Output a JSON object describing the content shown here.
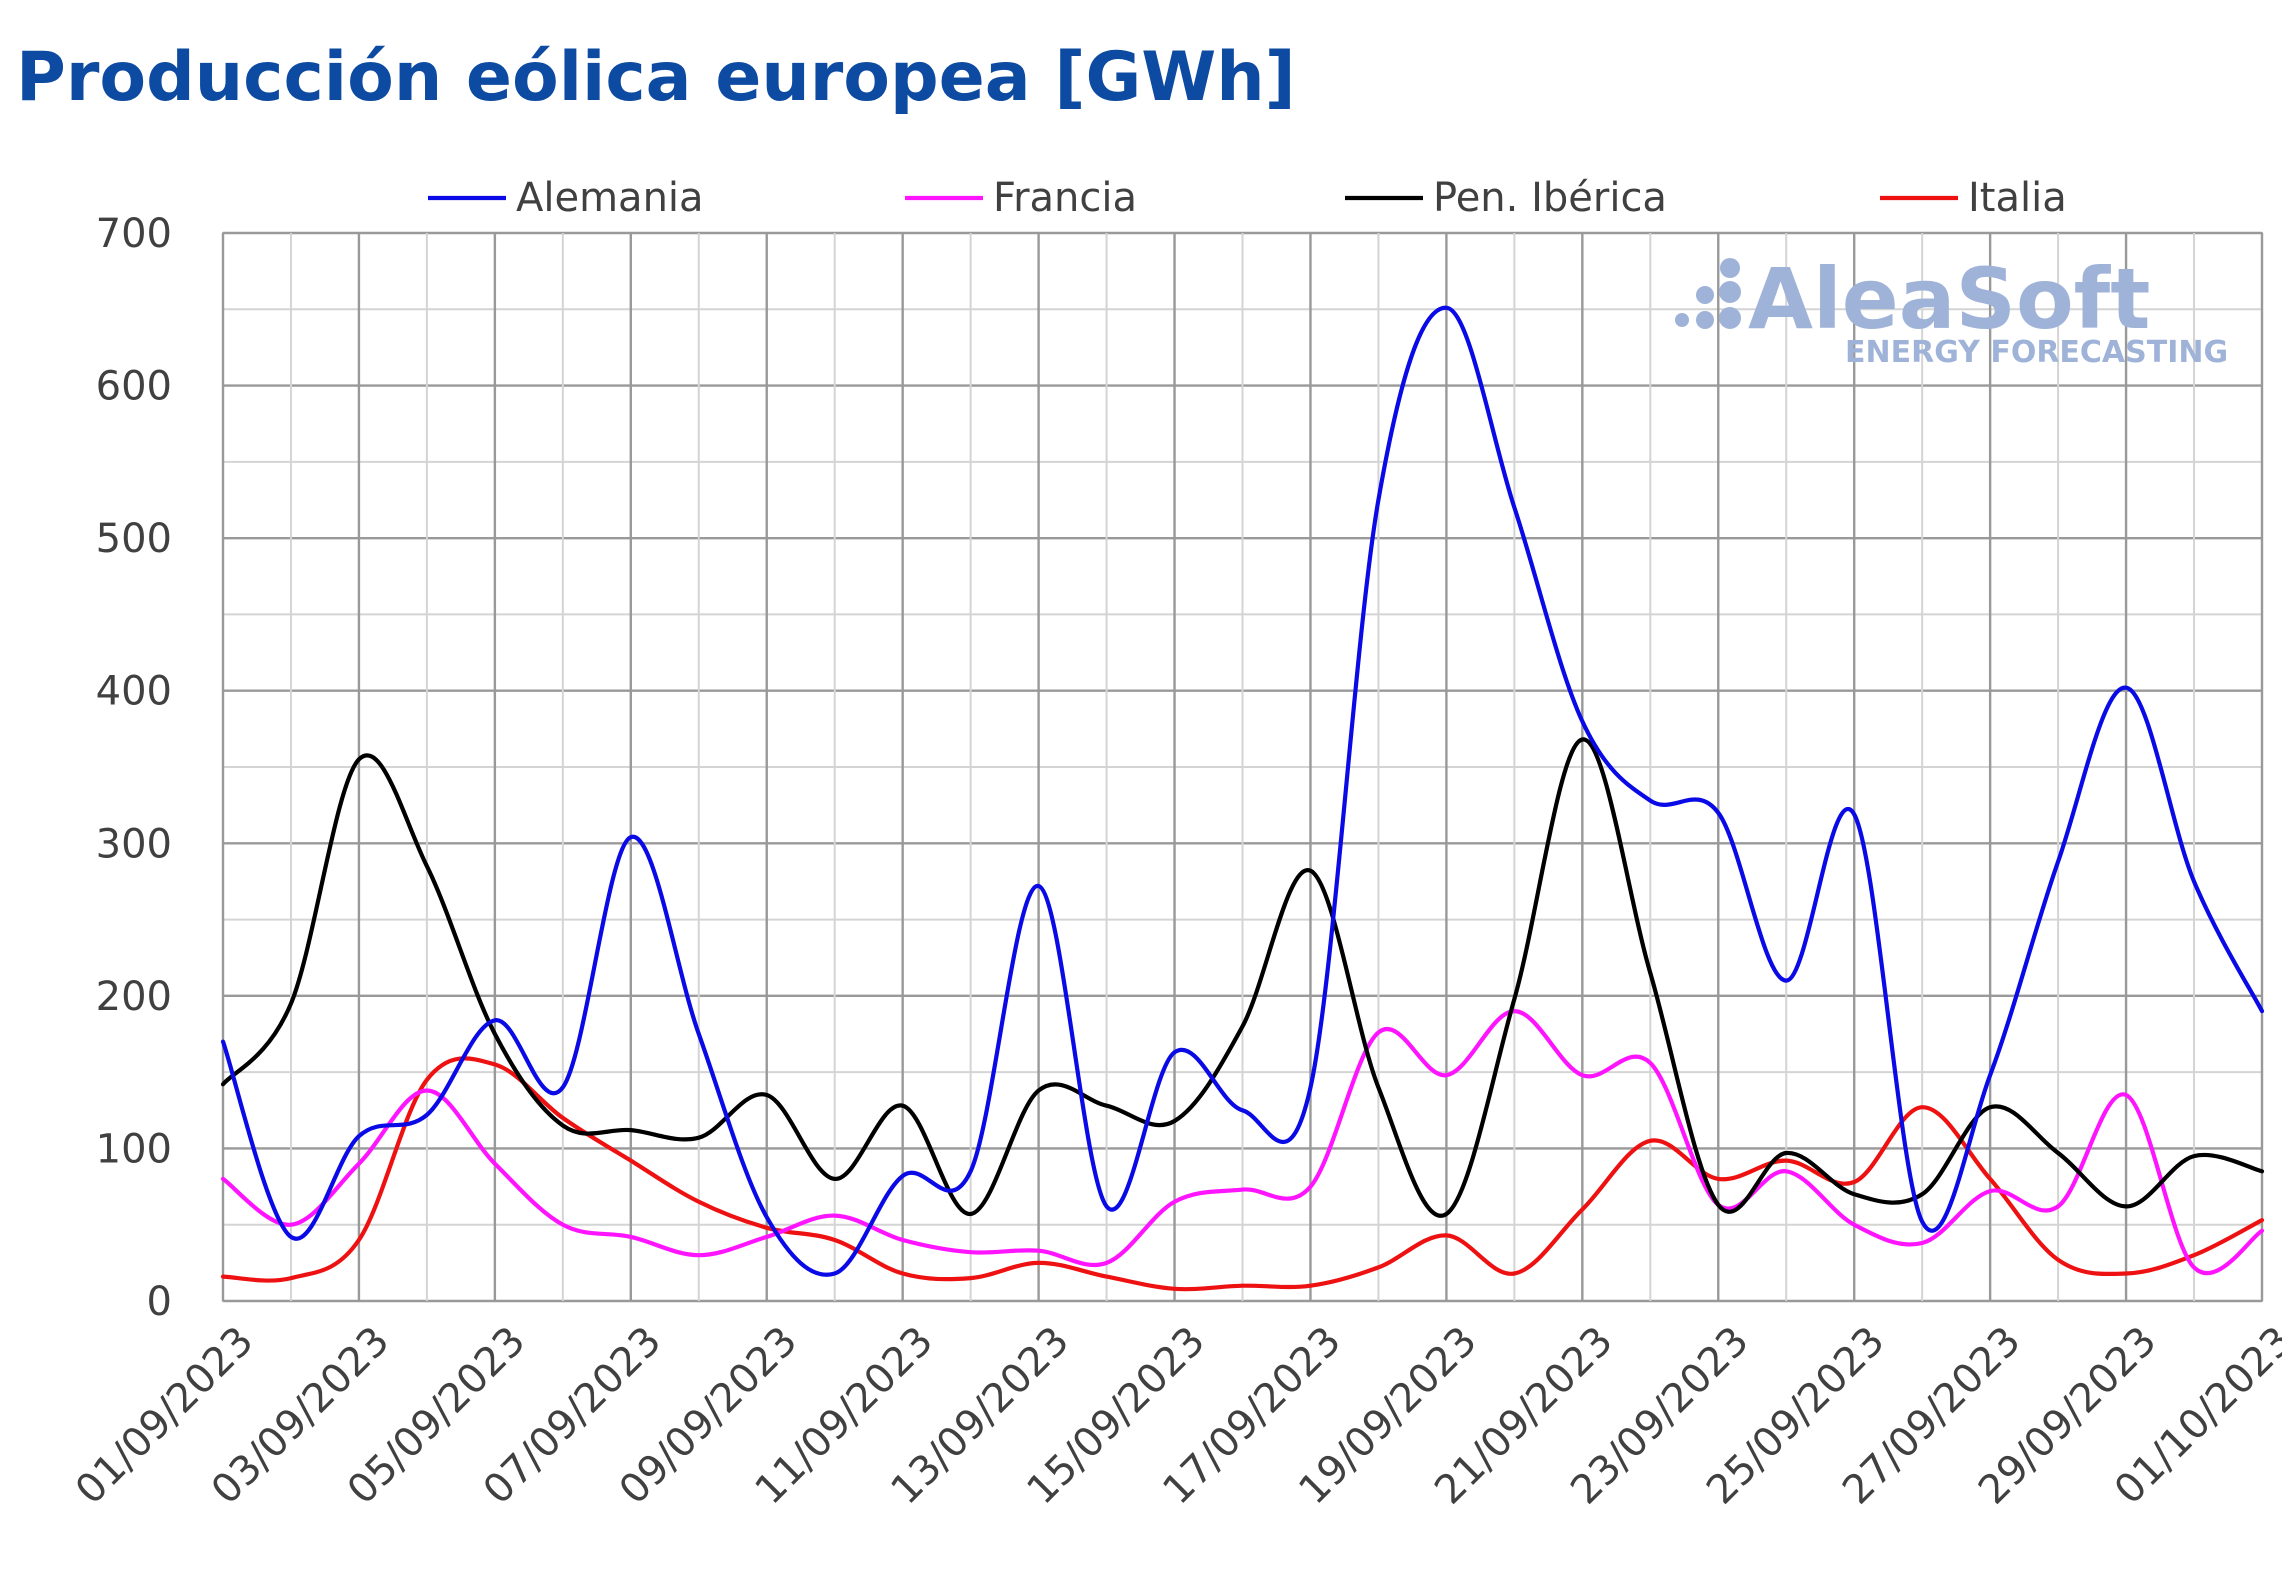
{
  "chart_data": {
    "type": "line",
    "title": "Producción eólica europea [GWh]",
    "ylim": [
      0,
      700
    ],
    "yticks": [
      0,
      100,
      200,
      300,
      400,
      500,
      600,
      700
    ],
    "x": [
      "01/09/2023",
      "02/09/2023",
      "03/09/2023",
      "04/09/2023",
      "05/09/2023",
      "06/09/2023",
      "07/09/2023",
      "08/09/2023",
      "09/09/2023",
      "10/09/2023",
      "11/09/2023",
      "12/09/2023",
      "13/09/2023",
      "14/09/2023",
      "15/09/2023",
      "16/09/2023",
      "17/09/2023",
      "18/09/2023",
      "19/09/2023",
      "20/09/2023",
      "21/09/2023",
      "22/09/2023",
      "23/09/2023",
      "24/09/2023",
      "25/09/2023",
      "26/09/2023",
      "27/09/2023",
      "28/09/2023",
      "29/09/2023",
      "30/09/2023",
      "01/10/2023"
    ],
    "xtick_labels": [
      "01/09/2023",
      "03/09/2023",
      "05/09/2023",
      "07/09/2023",
      "09/09/2023",
      "11/09/2023",
      "13/09/2023",
      "15/09/2023",
      "17/09/2023",
      "19/09/2023",
      "21/09/2023",
      "23/09/2023",
      "25/09/2023",
      "27/09/2023",
      "29/09/2023",
      "01/10/2023"
    ],
    "grid": true,
    "legend_position": "top",
    "series": [
      {
        "name": "Alemania",
        "color": "#0a0ae6",
        "values": [
          170,
          42,
          108,
          122,
          184,
          140,
          304,
          175,
          55,
          18,
          82,
          85,
          272,
          62,
          163,
          125,
          140,
          525,
          651,
          520,
          380,
          328,
          320,
          210,
          319,
          52,
          148,
          288,
          402,
          275,
          190
        ]
      },
      {
        "name": "Francia",
        "color": "#ff14ff",
        "values": [
          80,
          50,
          90,
          138,
          90,
          50,
          42,
          30,
          42,
          56,
          40,
          32,
          33,
          25,
          65,
          73,
          75,
          176,
          148,
          190,
          148,
          156,
          63,
          85,
          50,
          38,
          72,
          62,
          135,
          22,
          46
        ]
      },
      {
        "name": "Pen. Ibérica",
        "color": "#000000",
        "values": [
          142,
          195,
          355,
          285,
          175,
          115,
          112,
          107,
          135,
          80,
          128,
          57,
          138,
          128,
          118,
          180,
          282,
          140,
          57,
          198,
          368,
          215,
          63,
          97,
          70,
          70,
          127,
          97,
          62,
          95,
          85
        ]
      },
      {
        "name": "Italia",
        "color": "#ee1111",
        "values": [
          16,
          15,
          40,
          145,
          155,
          120,
          92,
          65,
          48,
          40,
          18,
          15,
          25,
          16,
          8,
          10,
          10,
          22,
          43,
          18,
          60,
          105,
          80,
          92,
          78,
          127,
          80,
          27,
          18,
          30,
          53
        ]
      }
    ]
  },
  "watermark": {
    "brand": "AleaSoft",
    "tagline": "ENERGY FORECASTING"
  }
}
